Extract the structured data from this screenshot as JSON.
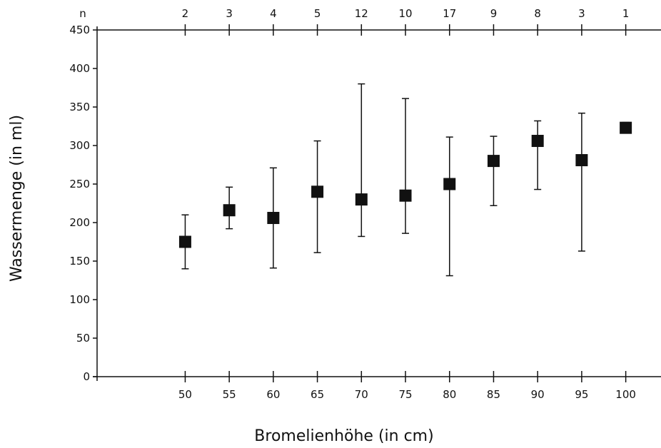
{
  "chart_data": {
    "type": "scatter",
    "title": "",
    "xlabel": "Bromelienhöhe (in cm)",
    "ylabel": "Wassermenge (in ml)",
    "top_axis_label": "n",
    "ylim": [
      0,
      450
    ],
    "xlim": [
      40,
      104
    ],
    "y_ticks": [
      0,
      50,
      100,
      150,
      200,
      250,
      300,
      350,
      400,
      450
    ],
    "grid": false,
    "marker": "filled-square",
    "points": [
      {
        "x": 50,
        "n": 2,
        "y": 175,
        "low": 140,
        "high": 210
      },
      {
        "x": 55,
        "n": 3,
        "y": 216,
        "low": 192,
        "high": 246
      },
      {
        "x": 60,
        "n": 4,
        "y": 206,
        "low": 141,
        "high": 271
      },
      {
        "x": 65,
        "n": 5,
        "y": 240,
        "low": 161,
        "high": 306
      },
      {
        "x": 70,
        "n": 12,
        "y": 230,
        "low": 182,
        "high": 380
      },
      {
        "x": 75,
        "n": 10,
        "y": 235,
        "low": 186,
        "high": 361
      },
      {
        "x": 80,
        "n": 17,
        "y": 250,
        "low": 131,
        "high": 311
      },
      {
        "x": 85,
        "n": 9,
        "y": 280,
        "low": 222,
        "high": 312
      },
      {
        "x": 90,
        "n": 8,
        "y": 306,
        "low": 243,
        "high": 332
      },
      {
        "x": 95,
        "n": 3,
        "y": 281,
        "low": 163,
        "high": 342
      },
      {
        "x": 100,
        "n": 1,
        "y": 323,
        "low": 323,
        "high": 330
      }
    ]
  }
}
